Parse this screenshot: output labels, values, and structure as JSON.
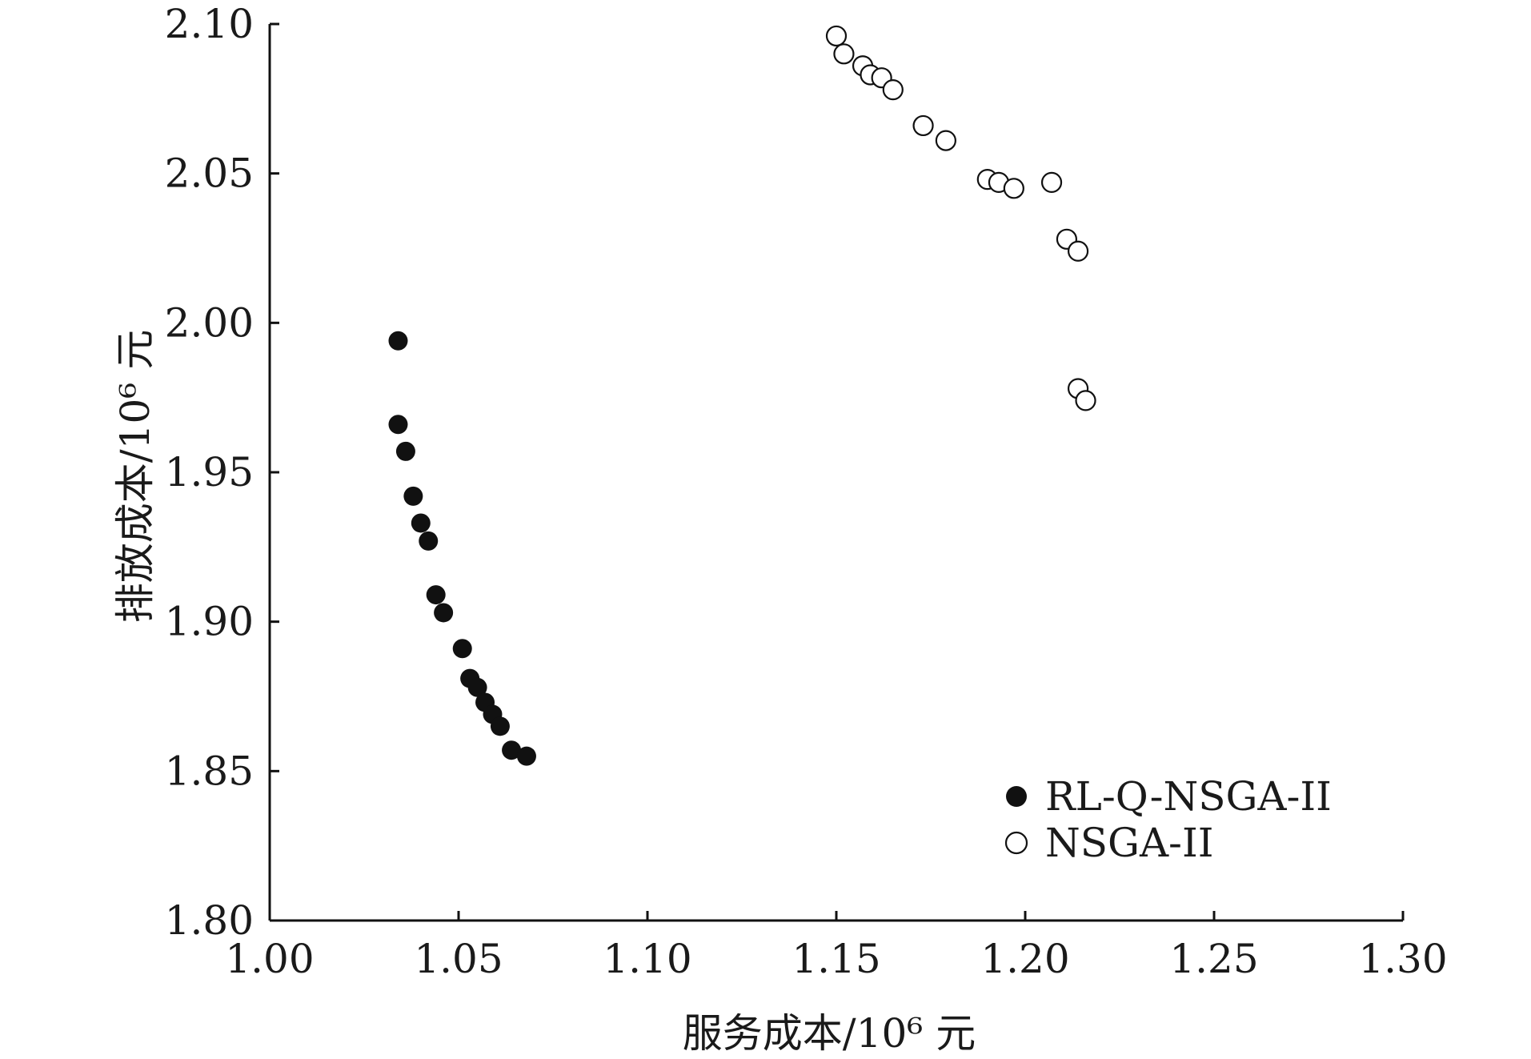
{
  "chart_data": {
    "type": "scatter",
    "xlabel": "服务成本/10⁶ 元",
    "ylabel": "排放成本/10⁶ 元",
    "xlim": [
      1.0,
      1.3
    ],
    "ylim": [
      1.8,
      2.1
    ],
    "xticks": [
      "1.00",
      "1.05",
      "1.10",
      "1.15",
      "1.20",
      "1.25",
      "1.30"
    ],
    "yticks": [
      "1.80",
      "1.85",
      "1.90",
      "1.95",
      "2.00",
      "2.05",
      "2.10"
    ],
    "legend_position": "lower-right",
    "grid": false,
    "series": [
      {
        "name": "RL-Q-NSGA-II",
        "marker": "filled-circle",
        "color": "#111111",
        "points": [
          {
            "x": 1.034,
            "y": 1.994
          },
          {
            "x": 1.034,
            "y": 1.966
          },
          {
            "x": 1.036,
            "y": 1.957
          },
          {
            "x": 1.038,
            "y": 1.942
          },
          {
            "x": 1.04,
            "y": 1.933
          },
          {
            "x": 1.042,
            "y": 1.927
          },
          {
            "x": 1.044,
            "y": 1.909
          },
          {
            "x": 1.046,
            "y": 1.903
          },
          {
            "x": 1.051,
            "y": 1.891
          },
          {
            "x": 1.053,
            "y": 1.881
          },
          {
            "x": 1.055,
            "y": 1.878
          },
          {
            "x": 1.057,
            "y": 1.873
          },
          {
            "x": 1.059,
            "y": 1.869
          },
          {
            "x": 1.061,
            "y": 1.865
          },
          {
            "x": 1.064,
            "y": 1.857
          },
          {
            "x": 1.068,
            "y": 1.855
          }
        ]
      },
      {
        "name": "NSGA-II",
        "marker": "open-circle",
        "color": "#111111",
        "points": [
          {
            "x": 1.15,
            "y": 2.096
          },
          {
            "x": 1.152,
            "y": 2.09
          },
          {
            "x": 1.157,
            "y": 2.086
          },
          {
            "x": 1.159,
            "y": 2.083
          },
          {
            "x": 1.162,
            "y": 2.082
          },
          {
            "x": 1.165,
            "y": 2.078
          },
          {
            "x": 1.173,
            "y": 2.066
          },
          {
            "x": 1.179,
            "y": 2.061
          },
          {
            "x": 1.19,
            "y": 2.048
          },
          {
            "x": 1.193,
            "y": 2.047
          },
          {
            "x": 1.197,
            "y": 2.045
          },
          {
            "x": 1.207,
            "y": 2.047
          },
          {
            "x": 1.211,
            "y": 2.028
          },
          {
            "x": 1.214,
            "y": 2.024
          },
          {
            "x": 1.214,
            "y": 1.978
          },
          {
            "x": 1.216,
            "y": 1.974
          }
        ]
      }
    ]
  }
}
